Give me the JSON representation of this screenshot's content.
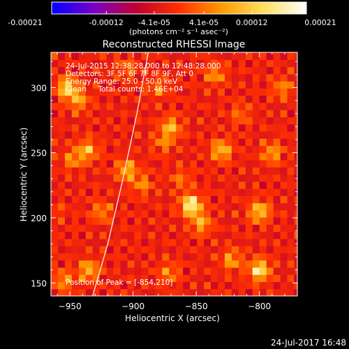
{
  "chart_data": {
    "type": "heatmap",
    "title": "Reconstructed RHESSI Image",
    "xlabel": "Heliocentric X (arcsec)",
    "ylabel": "Heliocentric Y (arcsec)",
    "xlim": [
      -965,
      -770
    ],
    "ylim": [
      140,
      327
    ],
    "x_ticks": [
      -950,
      -900,
      -850,
      -800
    ],
    "y_ticks": [
      150,
      200,
      250,
      300
    ],
    "x_tick_labels": [
      "−950",
      "−900",
      "−850",
      "−800"
    ],
    "y_tick_labels": [
      "150",
      "200",
      "250",
      "300"
    ],
    "colorbar": {
      "range": [
        -0.00021,
        0.00021
      ],
      "ticks": [
        -0.00021,
        -0.00012,
        -4.1e-05,
        4.1e-05,
        0.00012,
        0.00021
      ],
      "tick_labels": [
        "-0.00021",
        "-0.00012",
        "-4.1e-05",
        "4.1e-05",
        "0.00012",
        "0.00021"
      ],
      "unit_label": "(photons cm⁻² s⁻¹ asec⁻²)",
      "colors": [
        "#0000ff",
        "#7a00c8",
        "#c00030",
        "#ff3000",
        "#ff9a00",
        "#ffe060",
        "#ffffff"
      ]
    },
    "annotations": [
      "24-Jul-2015 12:38:28.000 to 12:48:28.000",
      "Detectors: 3F 5F 6F 7F 8F 9F, Att 0",
      "Energy Range: 25.0 - 50.0 keV",
      "Clean     Total counts: 1.46E+04",
      "Position of Peak = [-854,210]"
    ],
    "peak": {
      "x": -854,
      "y": 210
    },
    "bright_sources": [
      {
        "x": -952,
        "y": 300,
        "v": 0.00016
      },
      {
        "x": -943,
        "y": 290,
        "v": 0.0001
      },
      {
        "x": -936,
        "y": 252,
        "v": 0.00012
      },
      {
        "x": -948,
        "y": 245,
        "v": 8e-05
      },
      {
        "x": -905,
        "y": 237,
        "v": 0.00012
      },
      {
        "x": -893,
        "y": 226,
        "v": 8e-05
      },
      {
        "x": -870,
        "y": 270,
        "v": 0.00012
      },
      {
        "x": -876,
        "y": 258,
        "v": 7e-05
      },
      {
        "x": -854,
        "y": 210,
        "v": 0.00021
      },
      {
        "x": -846,
        "y": 196,
        "v": 0.00011
      },
      {
        "x": -830,
        "y": 252,
        "v": 0.00013
      },
      {
        "x": -800,
        "y": 205,
        "v": 0.00014
      },
      {
        "x": -790,
        "y": 250,
        "v": 0.0001
      },
      {
        "x": -800,
        "y": 160,
        "v": 0.00018
      },
      {
        "x": -822,
        "y": 168,
        "v": 0.0001
      },
      {
        "x": -935,
        "y": 160,
        "v": 0.00012
      },
      {
        "x": -955,
        "y": 152,
        "v": 9e-05
      },
      {
        "x": -872,
        "y": 158,
        "v": 8e-05
      },
      {
        "x": -925,
        "y": 205,
        "v": 8e-05
      },
      {
        "x": -880,
        "y": 300,
        "v": 7e-05
      },
      {
        "x": -835,
        "y": 310,
        "v": 9e-05
      },
      {
        "x": -905,
        "y": 315,
        "v": 6e-05
      },
      {
        "x": -782,
        "y": 300,
        "v": 8e-05
      },
      {
        "x": -862,
        "y": 230,
        "v": 6e-05
      },
      {
        "x": -815,
        "y": 280,
        "v": 6e-05
      },
      {
        "x": -960,
        "y": 205,
        "v": 3e-05
      }
    ],
    "limb_curve": [
      [
        -932,
        140
      ],
      [
        -920,
        180
      ],
      [
        -908,
        230
      ],
      [
        -897,
        280
      ],
      [
        -888,
        327
      ]
    ]
  },
  "footer": {
    "timestamp": "24-Jul-2017 16:48"
  }
}
